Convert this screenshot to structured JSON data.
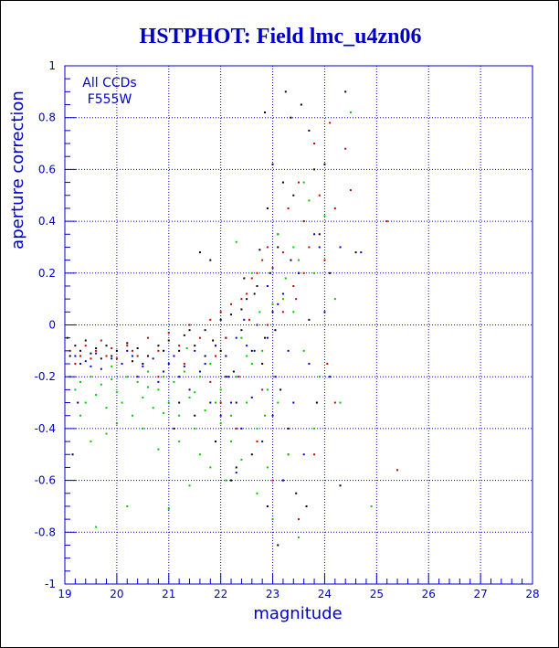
{
  "colors": {
    "axis": "#0000c8",
    "grid": "#0000c8",
    "title": "#0000c8",
    "series": [
      "#000000",
      "#c80000",
      "#00c800",
      "#0000c8"
    ]
  },
  "chart_data": {
    "type": "scatter",
    "title": "HSTPHOT: Field lmc_u4zn06",
    "xlabel": "magnitude",
    "ylabel": "aperture correction",
    "xlim": [
      19,
      28
    ],
    "ylim": [
      -1,
      1
    ],
    "x_ticks": [
      "19",
      "20",
      "21",
      "22",
      "23",
      "24",
      "25",
      "26",
      "27",
      "28"
    ],
    "y_ticks": [
      "-1",
      "-0.8",
      "-0.6",
      "-0.4",
      "-0.2",
      "0",
      "0.2",
      "0.4",
      "0.6",
      "0.8",
      "1"
    ],
    "grid": true,
    "annotations": [
      "All CCDs",
      "F555W"
    ],
    "series": [
      {
        "color": "#000000",
        "points": [
          [
            19.05,
            -0.05
          ],
          [
            19.1,
            -0.12
          ],
          [
            19.15,
            -0.5
          ],
          [
            19.2,
            -0.08
          ],
          [
            19.25,
            -0.3
          ],
          [
            19.3,
            -0.1
          ],
          [
            19.4,
            -0.06
          ],
          [
            19.5,
            -0.11
          ],
          [
            19.6,
            -0.09
          ],
          [
            19.7,
            -0.13
          ],
          [
            19.8,
            -0.08
          ],
          [
            19.9,
            -0.12
          ],
          [
            20.0,
            -0.1
          ],
          [
            20.2,
            -0.07
          ],
          [
            20.3,
            -0.14
          ],
          [
            20.4,
            -0.09
          ],
          [
            20.6,
            -0.12
          ],
          [
            20.8,
            -0.08
          ],
          [
            21.0,
            -0.06
          ],
          [
            21.2,
            -0.1
          ],
          [
            21.3,
            -0.04
          ],
          [
            21.5,
            -0.08
          ],
          [
            21.6,
            0.28
          ],
          [
            21.7,
            -0.02
          ],
          [
            21.8,
            0.25
          ],
          [
            21.85,
            -0.06
          ],
          [
            22.0,
            0.02
          ],
          [
            22.1,
            -0.05
          ],
          [
            22.2,
            0.04
          ],
          [
            22.3,
            -0.3
          ],
          [
            22.4,
            0.06
          ],
          [
            22.5,
            0.1
          ],
          [
            22.6,
            -0.1
          ],
          [
            22.7,
            0.15
          ],
          [
            22.75,
            0.29
          ],
          [
            22.8,
            -0.15
          ],
          [
            22.85,
            0.82
          ],
          [
            22.9,
            0.45
          ],
          [
            22.95,
            0.2
          ],
          [
            23.0,
            0.62
          ],
          [
            23.05,
            -0.02
          ],
          [
            23.1,
            0.3
          ],
          [
            23.15,
            -0.25
          ],
          [
            23.2,
            0.55
          ],
          [
            23.25,
            0.9
          ],
          [
            23.3,
            -0.4
          ],
          [
            23.35,
            0.8
          ],
          [
            23.4,
            0.5
          ],
          [
            23.45,
            -0.65
          ],
          [
            23.5,
            0.2
          ],
          [
            23.55,
            0.85
          ],
          [
            23.6,
            0.4
          ],
          [
            23.65,
            -0.7
          ],
          [
            23.7,
            0.75
          ],
          [
            23.8,
            0.6
          ],
          [
            23.85,
            -0.3
          ],
          [
            23.9,
            0.35
          ],
          [
            24.0,
            0.62
          ],
          [
            24.1,
            0.2
          ],
          [
            24.4,
            0.9
          ],
          [
            24.6,
            0.28
          ],
          [
            22.3,
            -0.55
          ],
          [
            22.6,
            -0.5
          ],
          [
            22.9,
            -0.7
          ],
          [
            23.1,
            -0.85
          ],
          [
            21.5,
            -0.35
          ],
          [
            21.9,
            -0.45
          ],
          [
            22.1,
            -0.2
          ],
          [
            21.1,
            -0.4
          ],
          [
            20.5,
            -0.15
          ],
          [
            22.45,
            0.18
          ],
          [
            22.65,
            0.12
          ],
          [
            23.7,
            0.02
          ],
          [
            24.3,
            -0.62
          ],
          [
            22.2,
            -0.6
          ],
          [
            21.2,
            -0.3
          ],
          [
            23.35,
            0.25
          ],
          [
            22.25,
            -0.18
          ],
          [
            20.9,
            -0.1
          ],
          [
            21.7,
            -0.12
          ],
          [
            22.0,
            -0.1
          ],
          [
            22.4,
            -0.02
          ],
          [
            23.0,
            0.05
          ],
          [
            22.85,
            -0.05
          ],
          [
            21.4,
            -0.02
          ]
        ]
      },
      {
        "color": "#c80000",
        "points": [
          [
            19.1,
            -0.1
          ],
          [
            19.2,
            -0.15
          ],
          [
            19.3,
            -0.12
          ],
          [
            19.4,
            -0.08
          ],
          [
            19.5,
            -0.13
          ],
          [
            19.6,
            -0.1
          ],
          [
            19.7,
            -0.06
          ],
          [
            19.8,
            -0.12
          ],
          [
            19.9,
            -0.09
          ],
          [
            20.0,
            -0.13
          ],
          [
            20.2,
            -0.08
          ],
          [
            20.4,
            -0.12
          ],
          [
            20.6,
            -0.05
          ],
          [
            20.8,
            -0.1
          ],
          [
            21.0,
            -0.03
          ],
          [
            21.2,
            -0.08
          ],
          [
            21.4,
            0.0
          ],
          [
            21.6,
            -0.05
          ],
          [
            21.8,
            0.02
          ],
          [
            22.0,
            0.05
          ],
          [
            22.2,
            0.08
          ],
          [
            22.4,
            0.1
          ],
          [
            22.5,
            0.12
          ],
          [
            22.6,
            0.18
          ],
          [
            22.7,
            0.2
          ],
          [
            22.8,
            0.25
          ],
          [
            22.9,
            0.3
          ],
          [
            23.0,
            0.22
          ],
          [
            23.1,
            0.35
          ],
          [
            23.2,
            0.28
          ],
          [
            23.3,
            0.45
          ],
          [
            23.4,
            0.15
          ],
          [
            23.5,
            0.55
          ],
          [
            23.6,
            0.4
          ],
          [
            23.7,
            0.3
          ],
          [
            23.8,
            0.7
          ],
          [
            23.9,
            0.5
          ],
          [
            24.0,
            0.25
          ],
          [
            24.1,
            0.78
          ],
          [
            24.2,
            0.45
          ],
          [
            24.4,
            0.68
          ],
          [
            24.5,
            0.52
          ],
          [
            25.2,
            0.4
          ],
          [
            25.4,
            -0.56
          ],
          [
            21.8,
            -0.22
          ],
          [
            22.0,
            -0.3
          ],
          [
            22.3,
            -0.4
          ],
          [
            22.7,
            -0.45
          ],
          [
            23.0,
            -0.6
          ],
          [
            23.3,
            -0.5
          ],
          [
            23.5,
            -0.75
          ],
          [
            23.8,
            -0.5
          ],
          [
            24.2,
            -0.3
          ],
          [
            20.8,
            -0.2
          ],
          [
            21.3,
            -0.15
          ],
          [
            22.9,
            0.0
          ],
          [
            23.2,
            0.05
          ],
          [
            23.6,
            0.2
          ],
          [
            22.1,
            -0.05
          ],
          [
            22.55,
            0.02
          ],
          [
            21.9,
            -0.12
          ],
          [
            21.1,
            -0.12
          ],
          [
            23.45,
            0.1
          ],
          [
            24.05,
            -0.15
          ],
          [
            22.35,
            -0.2
          ],
          [
            20.3,
            -0.1
          ],
          [
            22.8,
            -0.25
          ]
        ]
      },
      {
        "color": "#00c800",
        "points": [
          [
            19.1,
            -0.2
          ],
          [
            19.2,
            -0.25
          ],
          [
            19.3,
            -0.22
          ],
          [
            19.4,
            -0.3
          ],
          [
            19.5,
            -0.2
          ],
          [
            19.6,
            -0.27
          ],
          [
            19.7,
            -0.23
          ],
          [
            19.8,
            -0.32
          ],
          [
            19.9,
            -0.21
          ],
          [
            20.0,
            -0.26
          ],
          [
            20.1,
            -0.3
          ],
          [
            20.2,
            -0.2
          ],
          [
            20.3,
            -0.35
          ],
          [
            20.4,
            -0.22
          ],
          [
            20.5,
            -0.28
          ],
          [
            20.6,
            -0.18
          ],
          [
            20.7,
            -0.32
          ],
          [
            20.8,
            -0.25
          ],
          [
            20.9,
            -0.2
          ],
          [
            21.0,
            -0.3
          ],
          [
            21.1,
            -0.22
          ],
          [
            21.2,
            -0.35
          ],
          [
            21.3,
            -0.18
          ],
          [
            21.4,
            -0.28
          ],
          [
            21.5,
            -0.4
          ],
          [
            21.6,
            -0.2
          ],
          [
            21.7,
            -0.33
          ],
          [
            21.8,
            -0.15
          ],
          [
            21.9,
            -0.3
          ],
          [
            22.0,
            -0.25
          ],
          [
            22.1,
            -0.12
          ],
          [
            22.2,
            -0.35
          ],
          [
            22.3,
            -0.2
          ],
          [
            22.4,
            -0.05
          ],
          [
            22.5,
            -0.3
          ],
          [
            22.6,
            -0.15
          ],
          [
            22.7,
            -0.4
          ],
          [
            22.8,
            -0.1
          ],
          [
            22.9,
            -0.25
          ],
          [
            23.0,
            0.08
          ],
          [
            23.1,
            -0.3
          ],
          [
            23.2,
            0.1
          ],
          [
            23.3,
            -0.5
          ],
          [
            23.4,
            0.05
          ],
          [
            23.5,
            0.25
          ],
          [
            23.6,
            -0.1
          ],
          [
            23.7,
            0.48
          ],
          [
            23.8,
            0.2
          ],
          [
            23.9,
            -0.2
          ],
          [
            24.0,
            0.42
          ],
          [
            24.2,
            0.1
          ],
          [
            24.5,
            0.82
          ],
          [
            24.9,
            -0.7
          ],
          [
            19.5,
            -0.45
          ],
          [
            19.8,
            -0.42
          ],
          [
            20.2,
            -0.7
          ],
          [
            20.8,
            -0.48
          ],
          [
            21.0,
            -0.71
          ],
          [
            21.4,
            -0.62
          ],
          [
            21.8,
            -0.55
          ],
          [
            22.1,
            -0.6
          ],
          [
            22.4,
            -0.52
          ],
          [
            22.7,
            -0.65
          ],
          [
            23.0,
            -0.75
          ],
          [
            23.2,
            -0.6
          ],
          [
            23.5,
            -0.82
          ],
          [
            21.6,
            -0.5
          ],
          [
            22.3,
            0.32
          ],
          [
            22.6,
            0.2
          ],
          [
            23.1,
            0.35
          ],
          [
            23.4,
            0.3
          ],
          [
            19.3,
            -0.35
          ],
          [
            19.6,
            -0.78
          ],
          [
            20.5,
            -0.4
          ],
          [
            22.9,
            -0.55
          ],
          [
            23.8,
            -0.4
          ],
          [
            24.3,
            -0.3
          ],
          [
            22.2,
            -0.45
          ],
          [
            21.2,
            -0.45
          ],
          [
            20.0,
            -0.38
          ],
          [
            19.9,
            -0.16
          ],
          [
            20.6,
            -0.24
          ],
          [
            21.5,
            -0.26
          ],
          [
            22.0,
            -0.38
          ],
          [
            22.5,
            -0.12
          ],
          [
            23.6,
            0.55
          ],
          [
            21.9,
            -0.08
          ],
          [
            22.85,
            -0.35
          ],
          [
            20.9,
            -0.34
          ],
          [
            21.35,
            -0.09
          ],
          [
            22.75,
            0.05
          ],
          [
            23.25,
            0.18
          ]
        ]
      },
      {
        "color": "#0000c8",
        "points": [
          [
            19.2,
            -0.12
          ],
          [
            19.3,
            -0.15
          ],
          [
            19.4,
            -0.14
          ],
          [
            19.5,
            -0.16
          ],
          [
            19.6,
            -0.11
          ],
          [
            19.7,
            -0.17
          ],
          [
            19.9,
            -0.13
          ],
          [
            20.1,
            -0.15
          ],
          [
            20.3,
            -0.12
          ],
          [
            20.5,
            -0.16
          ],
          [
            20.7,
            -0.13
          ],
          [
            20.9,
            -0.18
          ],
          [
            21.1,
            -0.12
          ],
          [
            21.3,
            -0.16
          ],
          [
            21.5,
            -0.1
          ],
          [
            21.7,
            -0.15
          ],
          [
            21.9,
            -0.08
          ],
          [
            22.1,
            -0.12
          ],
          [
            22.3,
            -0.05
          ],
          [
            22.5,
            -0.08
          ],
          [
            22.7,
            0.0
          ],
          [
            22.9,
            -0.05
          ],
          [
            23.1,
            0.08
          ],
          [
            23.3,
            -0.1
          ],
          [
            23.5,
            0.2
          ],
          [
            23.7,
            -0.15
          ],
          [
            23.9,
            0.3
          ],
          [
            24.1,
            -0.2
          ],
          [
            24.3,
            0.3
          ],
          [
            24.7,
            0.28
          ],
          [
            21.4,
            -0.25
          ],
          [
            21.8,
            -0.3
          ],
          [
            22.0,
            -0.35
          ],
          [
            22.2,
            -0.3
          ],
          [
            22.4,
            -0.4
          ],
          [
            22.6,
            -0.28
          ],
          [
            22.8,
            -0.45
          ],
          [
            23.0,
            -0.35
          ],
          [
            23.2,
            -0.6
          ],
          [
            23.4,
            -0.3
          ],
          [
            23.6,
            -0.5
          ],
          [
            20.4,
            -0.2
          ],
          [
            20.8,
            -0.22
          ],
          [
            21.2,
            -0.2
          ],
          [
            22.9,
            0.15
          ],
          [
            23.2,
            0.12
          ],
          [
            23.8,
            0.35
          ],
          [
            22.3,
            -0.57
          ],
          [
            24.0,
            0.05
          ],
          [
            21.6,
            -0.18
          ],
          [
            22.15,
            -0.2
          ],
          [
            22.65,
            -0.1
          ],
          [
            21.0,
            -0.15
          ],
          [
            20.2,
            -0.1
          ],
          [
            23.05,
            -0.2
          ],
          [
            22.45,
            0.02
          ]
        ]
      }
    ]
  }
}
